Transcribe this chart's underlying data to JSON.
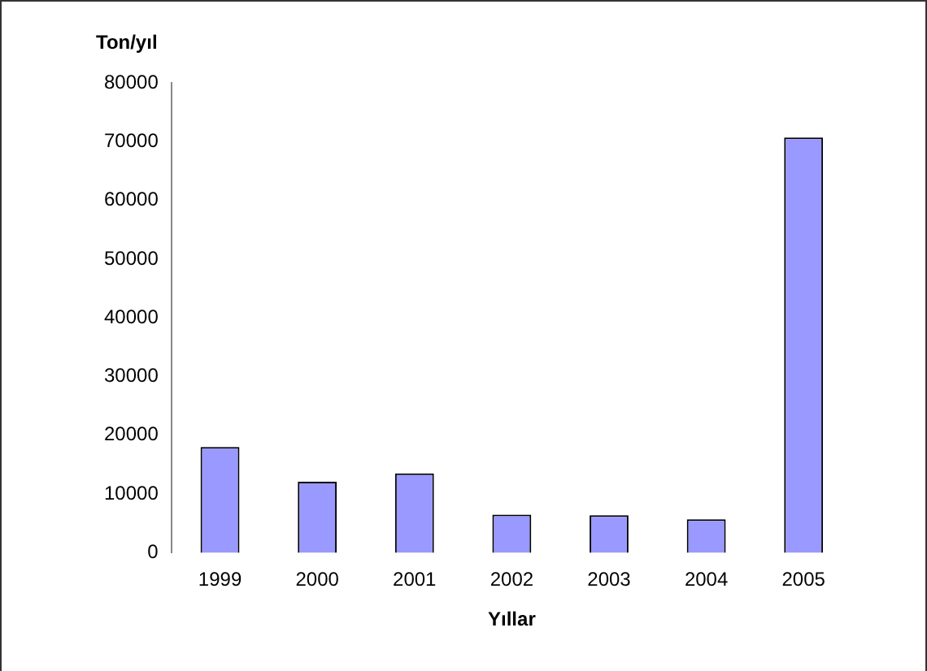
{
  "chart_data": {
    "type": "bar",
    "ylabel": "Ton/yıl",
    "xlabel": "Yıllar",
    "categories": [
      "1999",
      "2000",
      "2001",
      "2002",
      "2003",
      "2004",
      "2005"
    ],
    "values": [
      18000,
      12100,
      13500,
      6500,
      6400,
      5700,
      70700
    ],
    "color": "#9999ff",
    "ylim": [
      0,
      80000
    ],
    "yticks": [
      0,
      10000,
      20000,
      30000,
      40000,
      50000,
      60000,
      70000,
      80000
    ],
    "grid": false,
    "legend": false
  }
}
